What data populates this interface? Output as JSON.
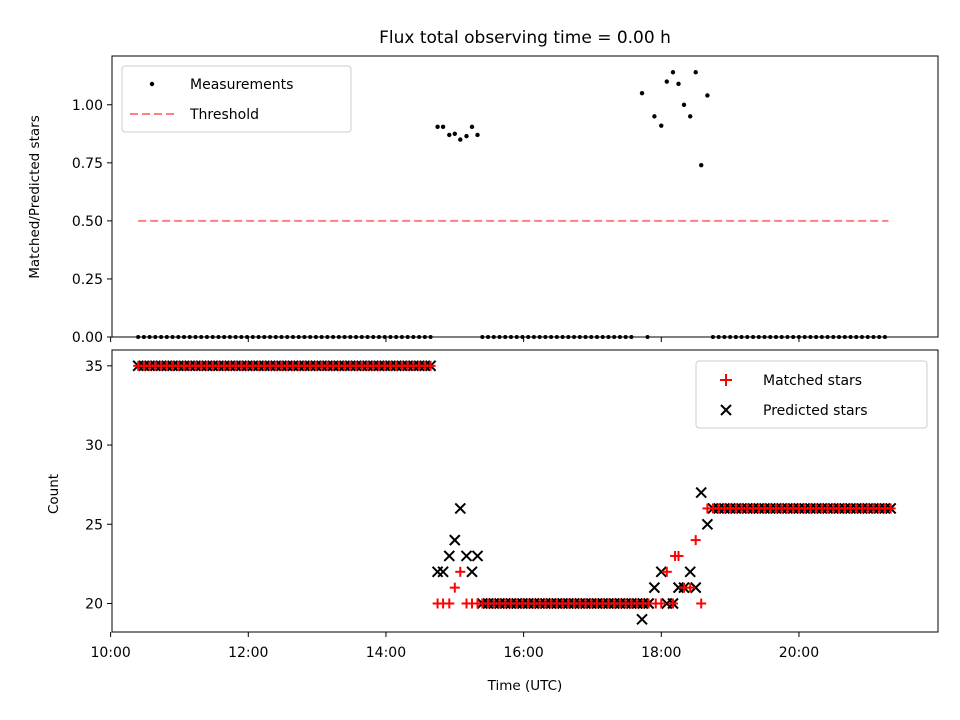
{
  "chart_data": [
    {
      "type": "scatter",
      "title": "Flux total observing time = 0.00 h",
      "xlabel": "",
      "ylabel": "Matched/Predicted stars",
      "ylim": [
        0,
        1.21
      ],
      "yticks": [
        0.0,
        0.25,
        0.5,
        0.75,
        1.0
      ],
      "ytick_labels": [
        "0.00",
        "0.25",
        "0.50",
        "0.75",
        "1.00"
      ],
      "xlim": [
        10.02,
        22.02
      ],
      "xticks": [
        10,
        12,
        14,
        16,
        18,
        20
      ],
      "legend_position": "top-left",
      "series": [
        {
          "name": "Measurements",
          "marker": "dot",
          "color": "#000000",
          "zero_runs": [
            [
              10.4,
              14.7
            ],
            [
              15.4,
              17.6
            ],
            [
              18.75,
              21.3
            ]
          ],
          "zero_step": 0.0833,
          "extra_zero_points": [
            17.8
          ],
          "points": [
            [
              14.75,
              0.905
            ],
            [
              14.83,
              0.905
            ],
            [
              14.92,
              0.87
            ],
            [
              15.0,
              0.875
            ],
            [
              15.08,
              0.85
            ],
            [
              15.17,
              0.865
            ],
            [
              15.25,
              0.905
            ],
            [
              15.33,
              0.87
            ],
            [
              17.72,
              1.05
            ],
            [
              17.9,
              0.95
            ],
            [
              18.0,
              0.91
            ],
            [
              18.08,
              1.1
            ],
            [
              18.17,
              1.14
            ],
            [
              18.25,
              1.09
            ],
            [
              18.33,
              1.0
            ],
            [
              18.42,
              0.95
            ],
            [
              18.5,
              1.14
            ],
            [
              18.58,
              0.74
            ],
            [
              18.67,
              1.04
            ]
          ]
        },
        {
          "name": "Threshold",
          "style": "dashed",
          "color": "#ff7f7f",
          "x": [
            10.4,
            21.3
          ],
          "y": [
            0.5,
            0.5
          ]
        }
      ]
    },
    {
      "type": "scatter",
      "title": "",
      "xlabel": "Time (UTC)",
      "ylabel": "Count",
      "ylim": [
        18.2,
        36.0
      ],
      "yticks": [
        20,
        25,
        30,
        35
      ],
      "ytick_labels": [
        "20",
        "25",
        "30",
        "35"
      ],
      "xlim": [
        10.02,
        22.02
      ],
      "xticks": [
        10,
        12,
        14,
        16,
        18,
        20
      ],
      "xtick_labels": [
        "10:00",
        "12:00",
        "14:00",
        "16:00",
        "18:00",
        "20:00"
      ],
      "legend_position": "top-right",
      "series": [
        {
          "name": "Matched stars",
          "marker": "plus",
          "color": "#ff0000",
          "runs": [
            [
              10.4,
              14.7,
              35
            ],
            [
              15.4,
              17.85,
              20
            ],
            [
              18.75,
              21.35,
              26
            ]
          ],
          "run_step": 0.0833,
          "points": [
            [
              14.75,
              20
            ],
            [
              14.83,
              20
            ],
            [
              14.92,
              20
            ],
            [
              15.0,
              21
            ],
            [
              15.08,
              22
            ],
            [
              15.17,
              20
            ],
            [
              15.25,
              20
            ],
            [
              15.33,
              20
            ],
            [
              17.92,
              20
            ],
            [
              18.0,
              20
            ],
            [
              18.08,
              22
            ],
            [
              18.17,
              20
            ],
            [
              18.2,
              23
            ],
            [
              18.25,
              23
            ],
            [
              18.33,
              21
            ],
            [
              18.42,
              21
            ],
            [
              18.5,
              24
            ],
            [
              18.58,
              20
            ],
            [
              18.67,
              26
            ]
          ]
        },
        {
          "name": "Predicted stars",
          "marker": "x",
          "color": "#000000",
          "points": [
            [
              14.75,
              22
            ],
            [
              14.83,
              22
            ],
            [
              14.92,
              23
            ],
            [
              15.0,
              24
            ],
            [
              15.08,
              26
            ],
            [
              15.17,
              23
            ],
            [
              15.25,
              22
            ],
            [
              15.33,
              23
            ],
            [
              17.72,
              19
            ],
            [
              17.9,
              21
            ],
            [
              18.0,
              22
            ],
            [
              18.08,
              20
            ],
            [
              18.17,
              20
            ],
            [
              18.25,
              21
            ],
            [
              18.33,
              21
            ],
            [
              18.42,
              22
            ],
            [
              18.5,
              21
            ],
            [
              18.58,
              27
            ],
            [
              18.67,
              25
            ]
          ]
        }
      ]
    }
  ]
}
